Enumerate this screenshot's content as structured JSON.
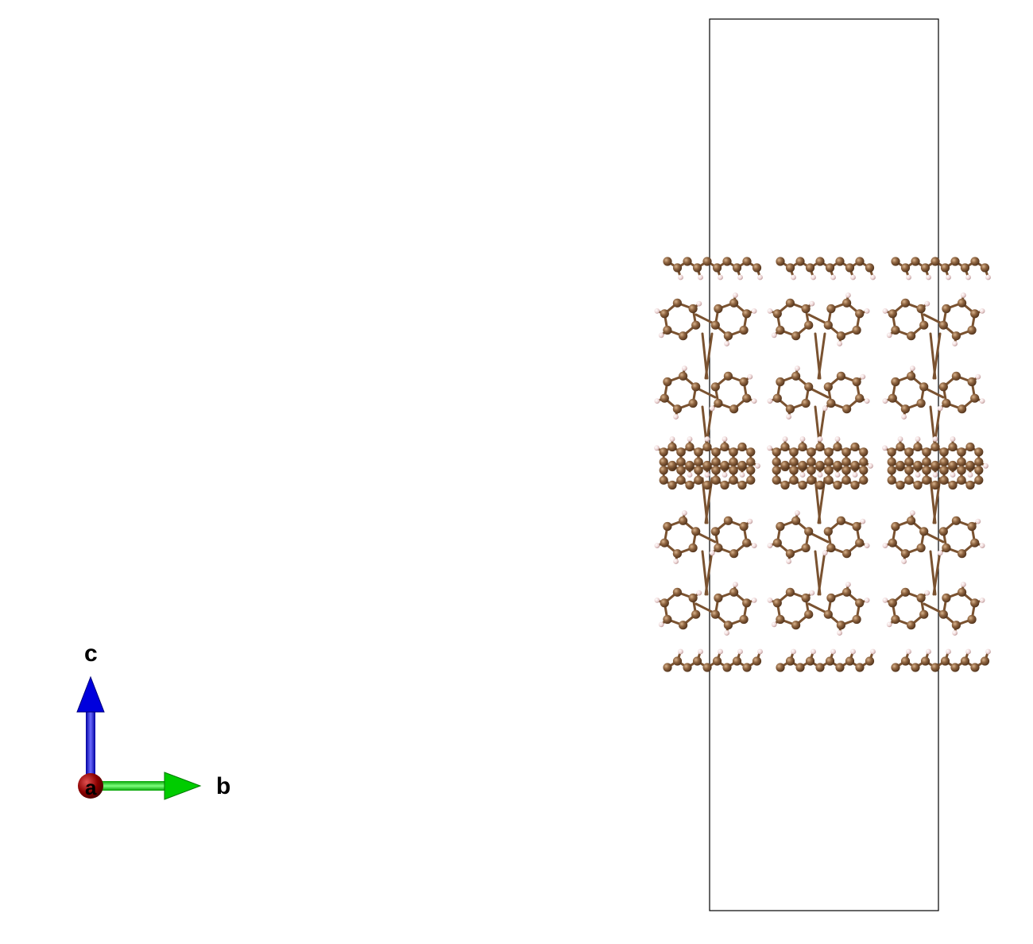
{
  "axes": {
    "a_label": "a",
    "b_label": "b",
    "c_label": "c"
  },
  "colors": {
    "background": "#ffffff",
    "cell_outline": "#000000",
    "carbon": "#8B5E3C",
    "carbon_highlight": "#C8A27A",
    "hydrogen": "#F2DCDC",
    "hydrogen_edge": "#C9A8A8",
    "bond": "#7A5230",
    "axis_a": "#8B0000",
    "axis_b": "#00CC00",
    "axis_c": "#0000DD"
  },
  "structure": {
    "atoms": [
      "C",
      "H"
    ],
    "view_direction": "a"
  }
}
